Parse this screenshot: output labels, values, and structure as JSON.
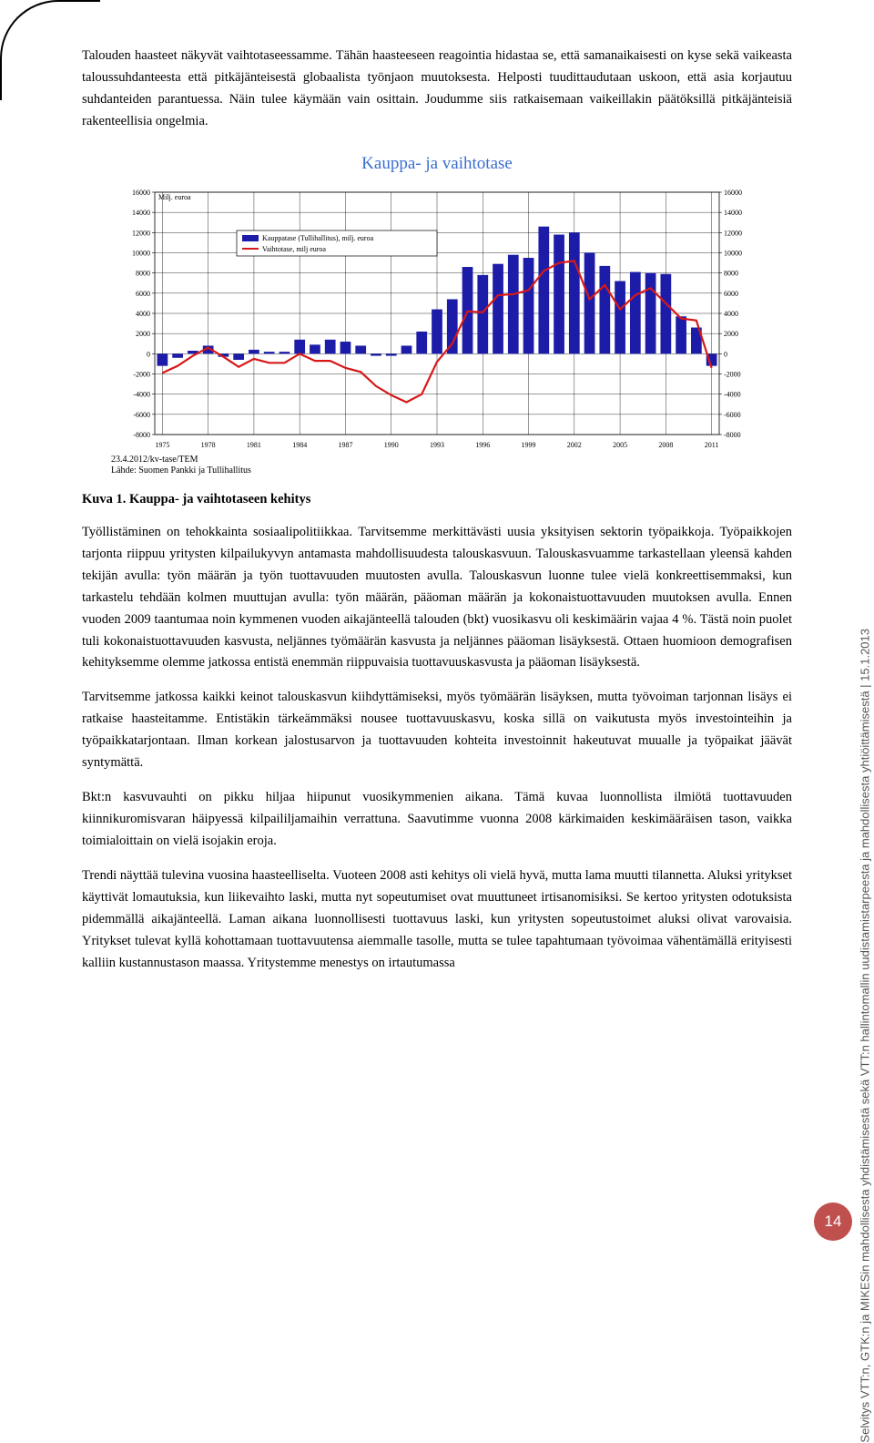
{
  "paragraphs": {
    "p1": "Talouden haasteet näkyvät vaihtotaseessamme. Tähän haasteeseen reagointia hidastaa se, että samanaikaisesti on kyse sekä vaikeasta taloussuhdanteesta että pitkäjänteisestä globaalista työnjaon muutoksesta. Helposti tuudittaudutaan uskoon, että asia korjautuu suhdanteiden parantuessa. Näin tulee käymään vain osittain. Joudumme siis ratkaisemaan vaikeillakin päätöksillä pitkäjänteisiä rakenteellisia ongelmia.",
    "p2": "Työllistäminen on tehokkainta sosiaalipolitiikkaa. Tarvitsemme merkittävästi uusia yksityisen sektorin työpaikkoja. Työpaikkojen tarjonta riippuu yritysten kilpailukyvyn antamasta mahdollisuudesta talouskasvuun. Talouskasvuamme tarkastellaan yleensä kahden tekijän avulla: työn määrän ja työn tuottavuuden muutosten avulla. Talouskasvun luonne tulee vielä konkreettisemmaksi, kun tarkastelu tehdään kolmen muuttujan avulla: työn määrän, pääoman määrän ja kokonaistuottavuuden muutoksen avulla. Ennen vuoden 2009 taantumaa noin kymmenen vuoden aikajänteellä talouden (bkt) vuosikasvu oli keskimäärin vajaa 4 %. Tästä noin puolet tuli kokonaistuottavuuden kasvusta, neljännes työmäärän kasvusta ja neljännes pääoman lisäyksestä. Ottaen huomioon demografisen kehityksemme olemme jatkossa entistä enemmän riippuvaisia tuottavuuskasvusta ja pääoman lisäyksestä.",
    "p3": "Tarvitsemme jatkossa kaikki keinot talouskasvun kiihdyttämiseksi, myös työmäärän lisäyksen, mutta työvoiman tarjonnan lisäys ei ratkaise haasteitamme. Entistäkin tärkeämmäksi nousee tuottavuuskasvu, koska sillä on vaikutusta myös investointeihin ja työpaikkatarjontaan. Ilman korkean jalostusarvon ja tuottavuuden kohteita investoinnit hakeutuvat muualle ja työpaikat jäävät syntymättä.",
    "p4": "Bkt:n kasvuvauhti on pikku hiljaa hiipunut vuosikymmenien aikana. Tämä kuvaa luonnollista ilmiötä tuottavuuden kiinnikuromisvaran häipyessä kilpaililjamaihin verrattuna. Saavutimme vuonna 2008 kärkimaiden keskimääräisen tason, vaikka toimialoittain on vielä isojakin eroja.",
    "p5": "Trendi näyttää tulevina vuosina haasteelliselta. Vuoteen 2008 asti kehitys oli vielä hyvä, mutta lama muutti tilannetta. Aluksi yritykset käyttivät lomautuksia, kun liikevaihto laski, mutta nyt sopeutumiset ovat muuttuneet irtisanomisiksi. Se kertoo yritysten odotuksista pidemmällä aikajänteellä. Laman aikana luonnollisesti tuottavuus laski, kun yritysten sopeutustoimet aluksi olivat varovaisia. Yritykset tulevat kyllä kohottamaan tuottavuutensa aiemmalle tasolle, mutta se tulee tapahtumaan työvoimaa vähentämällä erityisesti kalliin kustannustason maassa. Yritystemme menestys on irtautumassa"
  },
  "caption": {
    "label": "Kuva 1.",
    "text": " Kauppa- ja vaihtotaseen kehitys"
  },
  "chart": {
    "title": "Kauppa- ja vaihtotase",
    "unit_label": "Milj. euroa",
    "legend": {
      "series1": "Kauppatase (Tullihallitus), milj. euroa",
      "series2": "Vaihtotase, milj euroa"
    },
    "source_line1": "23.4.2012/kv-tase/TEM",
    "source_line2": "Lähde: Suomen Pankki ja Tullihallitus",
    "ymin": -8000,
    "ymax": 16000,
    "ytick_step": 2000,
    "years": [
      1975,
      1976,
      1977,
      1978,
      1979,
      1980,
      1981,
      1982,
      1983,
      1984,
      1985,
      1986,
      1987,
      1988,
      1989,
      1990,
      1991,
      1992,
      1993,
      1994,
      1995,
      1996,
      1997,
      1998,
      1999,
      2000,
      2001,
      2002,
      2003,
      2004,
      2005,
      2006,
      2007,
      2008,
      2009,
      2010,
      2011
    ],
    "bars": [
      -1200,
      -400,
      300,
      800,
      -300,
      -600,
      400,
      200,
      200,
      1400,
      900,
      1400,
      1200,
      800,
      -200,
      -200,
      800,
      2200,
      4400,
      5400,
      8600,
      7800,
      8900,
      9800,
      9500,
      12600,
      11800,
      12000,
      10000,
      8700,
      7200,
      8100,
      8000,
      7900,
      3700,
      2600,
      -1200
    ],
    "line": [
      -1900,
      -1200,
      -200,
      600,
      -300,
      -1300,
      -500,
      -900,
      -900,
      0,
      -700,
      -700,
      -1400,
      -1800,
      -3200,
      -4100,
      -4800,
      -4000,
      -800,
      1000,
      4200,
      4100,
      5800,
      5900,
      6300,
      8200,
      9000,
      9200,
      5400,
      6800,
      4400,
      5800,
      6500,
      5000,
      3500,
      3300,
      -1400
    ],
    "x_ticks": [
      1975,
      1978,
      1981,
      1984,
      1987,
      1990,
      1993,
      1996,
      1999,
      2002,
      2005,
      2008,
      2011
    ],
    "bar_color": "#1c1ca8",
    "line_color": "#d81818",
    "grid_color": "#000000",
    "background": "#ffffff"
  },
  "sidetext": "Selvitys VTT:n, GTK:n ja MIKESin mahdollisesta yhdistämisestä sekä VTT:n hallintomallin uudistamistarpeesta ja mahdollisesta yhtiöittämisestä | 15.1.2013",
  "page_number": "14"
}
